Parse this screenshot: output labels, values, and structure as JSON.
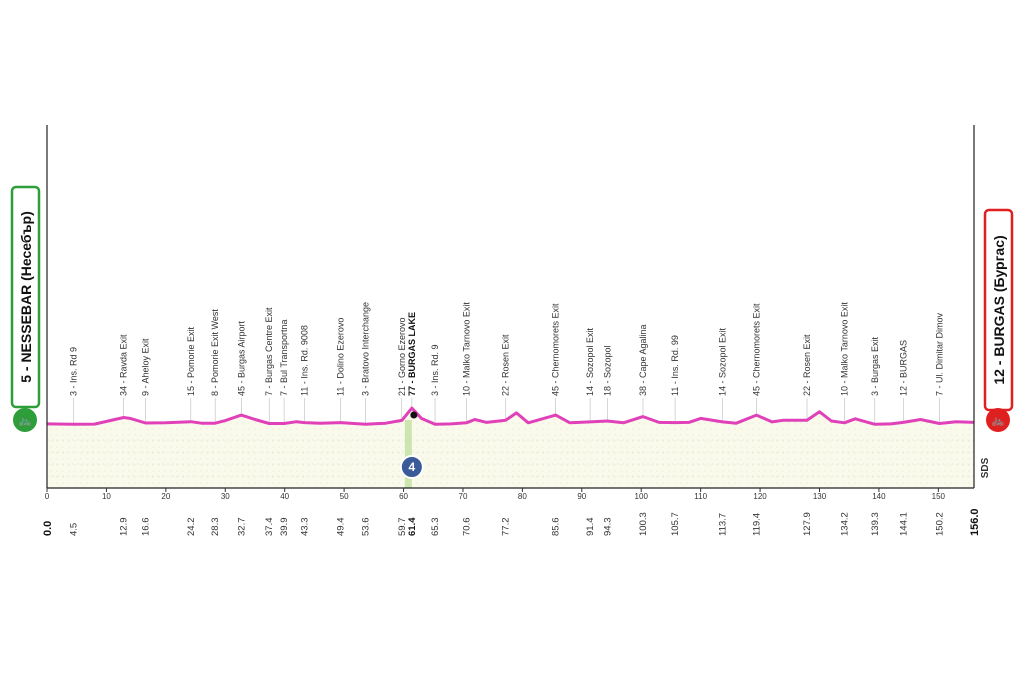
{
  "start": {
    "label": "5 - NESSEBAR (Несебър)",
    "icon": "cyclist-icon"
  },
  "finish": {
    "label": "12 - BURGAS (Бургас)",
    "icon": "cyclist-icon"
  },
  "sprint_badge": "4",
  "sponsor": "SDS",
  "colors": {
    "profile": "#e040b8",
    "fill": "#f8f8e6",
    "start": "#2e9e3a",
    "finish": "#e02020",
    "sprint": "#3b5a9a",
    "sprint_band": "#cde6b0"
  },
  "chart_data": {
    "type": "area",
    "title": "",
    "xlabel": "",
    "ylabel": "",
    "xlim": [
      0,
      156
    ],
    "x_ticks": [
      "0",
      "10",
      "20",
      "30",
      "40",
      "50",
      "60",
      "70",
      "80",
      "90",
      "100",
      "110",
      "120",
      "130",
      "140",
      "150"
    ],
    "start_km": "0.0",
    "finish_km": "156.0",
    "sprint_km": 61.4,
    "waypoints": [
      {
        "km": "4.5",
        "label": "3 - Ins. Rd 9"
      },
      {
        "km": "12.9",
        "label": "34 - Ravda Exit"
      },
      {
        "km": "16.6",
        "label": "9 - Aheloy Exit"
      },
      {
        "km": "24.2",
        "label": "15 - Pomorie Exit"
      },
      {
        "km": "28.3",
        "label": "8 - Pomorie Exit West"
      },
      {
        "km": "32.7",
        "label": "45 - Burgas Airport"
      },
      {
        "km": "37.4",
        "label": "7 - Burgas Centre Exit"
      },
      {
        "km": "39.9",
        "label": "7 - Bul Transportna"
      },
      {
        "km": "43.3",
        "label": "11 - Ins. Rd. 9008"
      },
      {
        "km": "49.4",
        "label": "11 - Dolino Ezerovo"
      },
      {
        "km": "53.6",
        "label": "3 - Bratovo Interchange"
      },
      {
        "km": "59.7",
        "label": "21 - Gorno Ezerovo"
      },
      {
        "km": "61.4",
        "label": "77 - BURGAS LAKE"
      },
      {
        "km": "65.3",
        "label": "3 - Ins. Rd. 9"
      },
      {
        "km": "70.6",
        "label": "10 - Malko Tarnovo Exit"
      },
      {
        "km": "77.2",
        "label": "22 - Rosen Exit"
      },
      {
        "km": "85.6",
        "label": "45 - Chernomorets Exit"
      },
      {
        "km": "91.4",
        "label": "14 - Sozopol Exit"
      },
      {
        "km": "94.3",
        "label": "18 - Sozopol"
      },
      {
        "km": "100.3",
        "label": "38 - Cape Agalina"
      },
      {
        "km": "105.7",
        "label": "11 - Ins. Rd. 99"
      },
      {
        "km": "113.7",
        "label": "14 - Sozopol Exit"
      },
      {
        "km": "119.4",
        "label": "45 - Chernomorets Exit"
      },
      {
        "km": "127.9",
        "label": "22 - Rosen Exit"
      },
      {
        "km": "134.2",
        "label": "10 - Malko Tarnovo Exit"
      },
      {
        "km": "139.3",
        "label": "3 - Burgas Exit"
      },
      {
        "km": "144.1",
        "label": "12 - BURGAS"
      },
      {
        "km": "150.2",
        "label": "7 - Ul. Dimitar Dimov"
      }
    ],
    "profile": [
      [
        0,
        5
      ],
      [
        4.5,
        3
      ],
      [
        8,
        4
      ],
      [
        12.9,
        34
      ],
      [
        14,
        30
      ],
      [
        16.6,
        9
      ],
      [
        20,
        10
      ],
      [
        24.2,
        15
      ],
      [
        26,
        8
      ],
      [
        28.3,
        8
      ],
      [
        30,
        20
      ],
      [
        32.7,
        45
      ],
      [
        35,
        25
      ],
      [
        37.4,
        7
      ],
      [
        39.9,
        7
      ],
      [
        42,
        15
      ],
      [
        43.3,
        11
      ],
      [
        46,
        8
      ],
      [
        49.4,
        11
      ],
      [
        53.6,
        3
      ],
      [
        57,
        8
      ],
      [
        59.7,
        21
      ],
      [
        61.4,
        77
      ],
      [
        63,
        30
      ],
      [
        65.3,
        3
      ],
      [
        68,
        5
      ],
      [
        70.6,
        10
      ],
      [
        72,
        25
      ],
      [
        74,
        12
      ],
      [
        77.2,
        22
      ],
      [
        79,
        55
      ],
      [
        81,
        10
      ],
      [
        85.6,
        45
      ],
      [
        88,
        10
      ],
      [
        91.4,
        14
      ],
      [
        94.3,
        18
      ],
      [
        97,
        10
      ],
      [
        100.3,
        38
      ],
      [
        103,
        12
      ],
      [
        105.7,
        11
      ],
      [
        108,
        12
      ],
      [
        110,
        30
      ],
      [
        113.7,
        14
      ],
      [
        116,
        8
      ],
      [
        119.4,
        45
      ],
      [
        122,
        14
      ],
      [
        124,
        22
      ],
      [
        127.9,
        22
      ],
      [
        130,
        60
      ],
      [
        132,
        18
      ],
      [
        134.2,
        10
      ],
      [
        136,
        28
      ],
      [
        139.3,
        3
      ],
      [
        142,
        5
      ],
      [
        144.1,
        12
      ],
      [
        147,
        25
      ],
      [
        150.2,
        7
      ],
      [
        153,
        15
      ],
      [
        156,
        12
      ]
    ],
    "grid": true
  }
}
